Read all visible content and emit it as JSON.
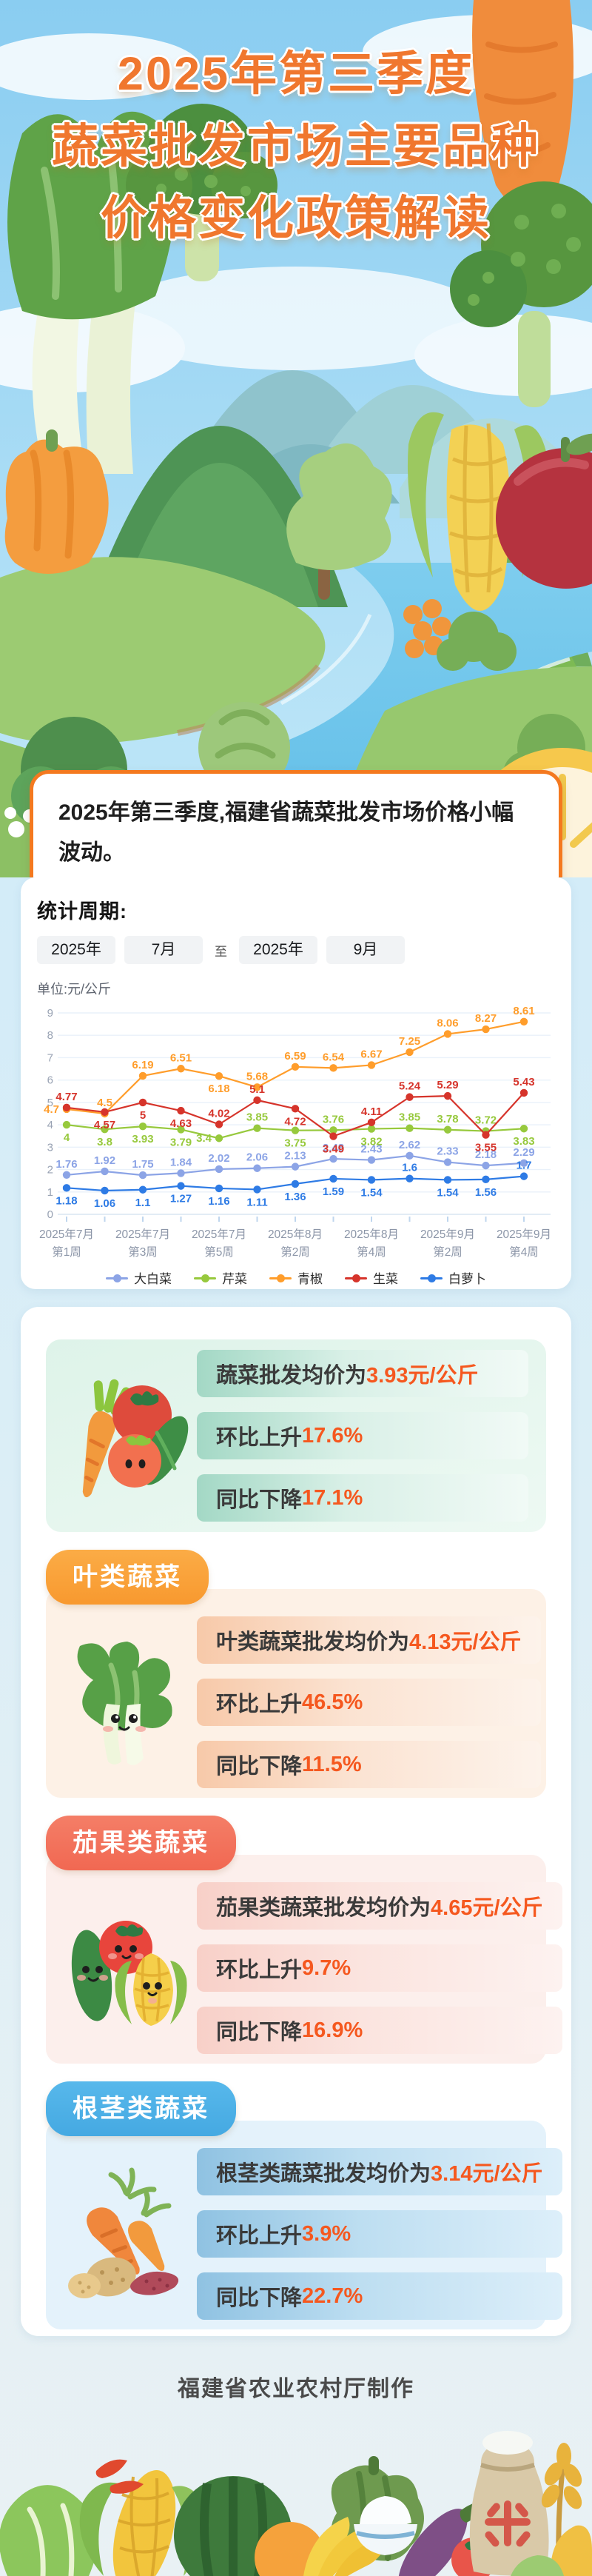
{
  "page": {
    "title_lines": [
      "2025年第三季度",
      "蔬菜批发市场主要品种",
      "价格变化政策解读"
    ],
    "footer": "福建省农业农村厅制作"
  },
  "intro": {
    "text": "2025年第三季度,福建省蔬菜批发市场价格小幅波动。"
  },
  "stats": {
    "label": "统计周期:",
    "period": {
      "start_year": "2025年",
      "start_month": "7月",
      "to": "至",
      "end_year": "2025年",
      "end_month": "9月"
    }
  },
  "chart_data": {
    "type": "line",
    "unit_label": "单位:元/公斤",
    "ylim": [
      0,
      9
    ],
    "y_ticks": [
      0,
      1,
      2,
      3,
      4,
      5,
      6,
      7,
      8,
      9
    ],
    "grid": true,
    "legend_position": "bottom",
    "x_count": 13,
    "x_tick_labels": [
      {
        "index": 0,
        "line1": "2025年7月",
        "line2": "第1周"
      },
      {
        "index": 2,
        "line1": "2025年7月",
        "line2": "第3周"
      },
      {
        "index": 4,
        "line1": "2025年7月",
        "line2": "第5周"
      },
      {
        "index": 6,
        "line1": "2025年8月",
        "line2": "第2周"
      },
      {
        "index": 8,
        "line1": "2025年8月",
        "line2": "第4周"
      },
      {
        "index": 10,
        "line1": "2025年9月",
        "line2": "第2周"
      },
      {
        "index": 12,
        "line1": "2025年9月",
        "line2": "第4周"
      }
    ],
    "series": [
      {
        "name": "大白菜",
        "color": "#8CA4E6",
        "values": [
          1.76,
          1.92,
          1.75,
          1.84,
          2.02,
          2.06,
          2.13,
          2.48,
          2.43,
          2.62,
          2.33,
          2.18,
          2.29
        ],
        "label_pos": [
          "a",
          "a",
          "a",
          "a",
          "a",
          "a",
          "a",
          "a",
          "a",
          "a",
          "a",
          "a",
          "a"
        ]
      },
      {
        "name": "芹菜",
        "color": "#97C93D",
        "values": [
          4,
          3.8,
          3.93,
          3.79,
          3.4,
          3.85,
          3.75,
          3.76,
          3.82,
          3.85,
          3.78,
          3.72,
          3.83
        ],
        "label_pos": [
          "b",
          "b",
          "b",
          "b",
          "l",
          "a",
          "b",
          "a",
          "b",
          "a",
          "a",
          "a",
          "b"
        ]
      },
      {
        "name": "青椒",
        "color": "#FF9D2B",
        "values": [
          4.7,
          4.5,
          6.19,
          6.51,
          6.18,
          5.68,
          6.59,
          6.54,
          6.67,
          7.25,
          8.06,
          8.27,
          8.61
        ],
        "label_pos": [
          "l",
          "a",
          "a",
          "a",
          "b",
          "a",
          "a",
          "a",
          "a",
          "a",
          "a",
          "a",
          "a"
        ]
      },
      {
        "name": "生菜",
        "color": "#D6342B",
        "values": [
          4.77,
          4.57,
          5,
          4.63,
          4.02,
          5.1,
          4.72,
          3.49,
          4.11,
          5.24,
          5.29,
          3.55,
          5.43
        ],
        "label_pos": [
          "a",
          "b",
          "b",
          "b",
          "a",
          "a",
          "b",
          "b",
          "a",
          "a",
          "a",
          "b",
          "a"
        ]
      },
      {
        "name": "白萝卜",
        "color": "#2E7BE5",
        "values": [
          1.18,
          1.06,
          1.1,
          1.27,
          1.16,
          1.11,
          1.36,
          1.59,
          1.54,
          1.6,
          1.54,
          1.56,
          1.7
        ],
        "label_pos": [
          "b",
          "b",
          "b",
          "b",
          "b",
          "b",
          "b",
          "b",
          "b",
          "a",
          "b",
          "b",
          "a"
        ]
      }
    ]
  },
  "cards": {
    "accent_color": "#F5581F",
    "summary": {
      "rows": [
        {
          "prefix": "蔬菜批发均价为",
          "value": "3.93元/公斤"
        },
        {
          "prefix": "环比上升",
          "value": "17.6%"
        },
        {
          "prefix": "同比下降",
          "value": "17.1%"
        }
      ]
    },
    "leaf": {
      "badge": "叶类蔬菜",
      "badge_color": "#F8992F",
      "rows": [
        {
          "prefix": "叶类蔬菜批发均价为",
          "value": "4.13元/公斤"
        },
        {
          "prefix": "环比上升",
          "value": "46.5%"
        },
        {
          "prefix": "同比下降",
          "value": "11.5%"
        }
      ]
    },
    "fruit": {
      "badge": "茄果类蔬菜",
      "badge_color": "#F16852",
      "rows": [
        {
          "prefix": "茄果类蔬菜批发均价为",
          "value": "4.65元/公斤"
        },
        {
          "prefix": "环比上升",
          "value": "9.7%"
        },
        {
          "prefix": "同比下降",
          "value": "16.9%"
        }
      ]
    },
    "root": {
      "badge": "根茎类蔬菜",
      "badge_color": "#45A9E2",
      "rows": [
        {
          "prefix": "根茎类蔬菜批发均价为",
          "value": "3.14元/公斤"
        },
        {
          "prefix": "环比上升",
          "value": "3.9%"
        },
        {
          "prefix": "同比下降",
          "value": "22.7%"
        }
      ]
    }
  }
}
